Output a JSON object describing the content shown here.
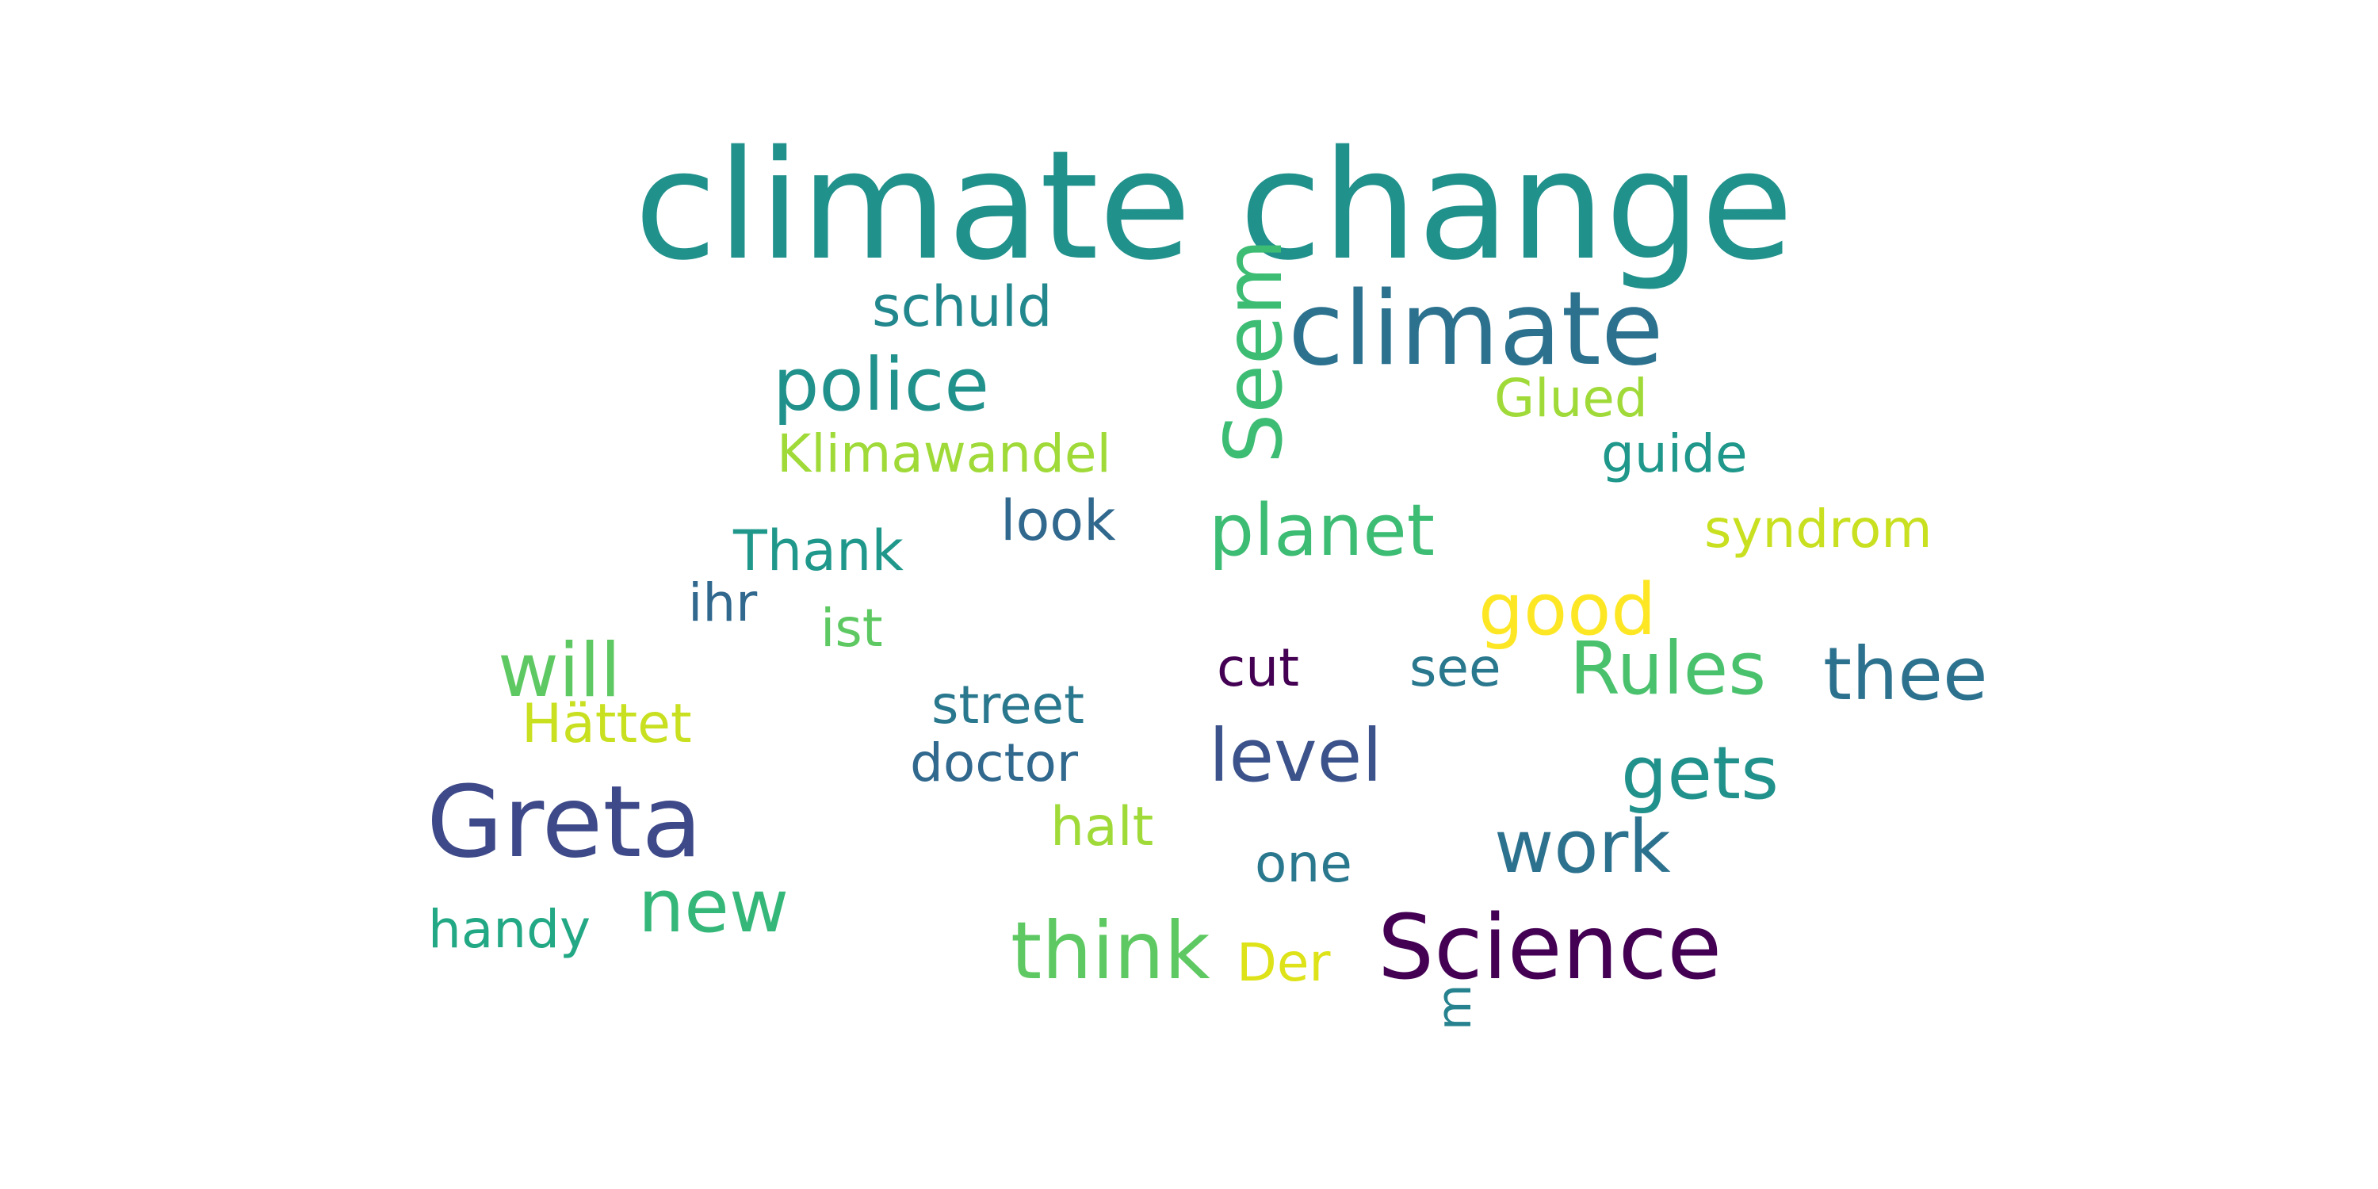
{
  "words": [
    {
      "text": "climate change",
      "color": "#21918c"
    },
    {
      "text": "climate",
      "color": "#2c728e"
    },
    {
      "text": "schuld",
      "color": "#23888e"
    },
    {
      "text": "Seem",
      "color": "#3dbc74"
    },
    {
      "text": "police",
      "color": "#21918c"
    },
    {
      "text": "Glued",
      "color": "#a0da39"
    },
    {
      "text": "Klimawandel",
      "color": "#a0da39"
    },
    {
      "text": "guide",
      "color": "#1f988b"
    },
    {
      "text": "look",
      "color": "#31688e"
    },
    {
      "text": "planet",
      "color": "#3dbc74"
    },
    {
      "text": "syndrom",
      "color": "#c8e020"
    },
    {
      "text": "Thank",
      "color": "#1f988b"
    },
    {
      "text": "ihr",
      "color": "#31688e"
    },
    {
      "text": "ist",
      "color": "#5ec962"
    },
    {
      "text": "good",
      "color": "#fde725"
    },
    {
      "text": "will",
      "color": "#5ec962"
    },
    {
      "text": "cut",
      "color": "#440154"
    },
    {
      "text": "see",
      "color": "#2a788e"
    },
    {
      "text": "Rules",
      "color": "#4ac16d"
    },
    {
      "text": "thee",
      "color": "#2c728e"
    },
    {
      "text": "Hättet",
      "color": "#c8e020"
    },
    {
      "text": "street",
      "color": "#2a788e"
    },
    {
      "text": "doctor",
      "color": "#31688e"
    },
    {
      "text": "level",
      "color": "#3b528b"
    },
    {
      "text": "gets",
      "color": "#21918c"
    },
    {
      "text": "Greta",
      "color": "#3e4989"
    },
    {
      "text": "halt",
      "color": "#a0da39"
    },
    {
      "text": "work",
      "color": "#2c728e"
    },
    {
      "text": "one",
      "color": "#2a788e"
    },
    {
      "text": "new",
      "color": "#35b779"
    },
    {
      "text": "handy",
      "color": "#22a884"
    },
    {
      "text": "think",
      "color": "#5ec962"
    },
    {
      "text": "Der",
      "color": "#dde318"
    },
    {
      "text": "Science",
      "color": "#440154"
    },
    {
      "text": "m",
      "color": "#26828e"
    }
  ]
}
